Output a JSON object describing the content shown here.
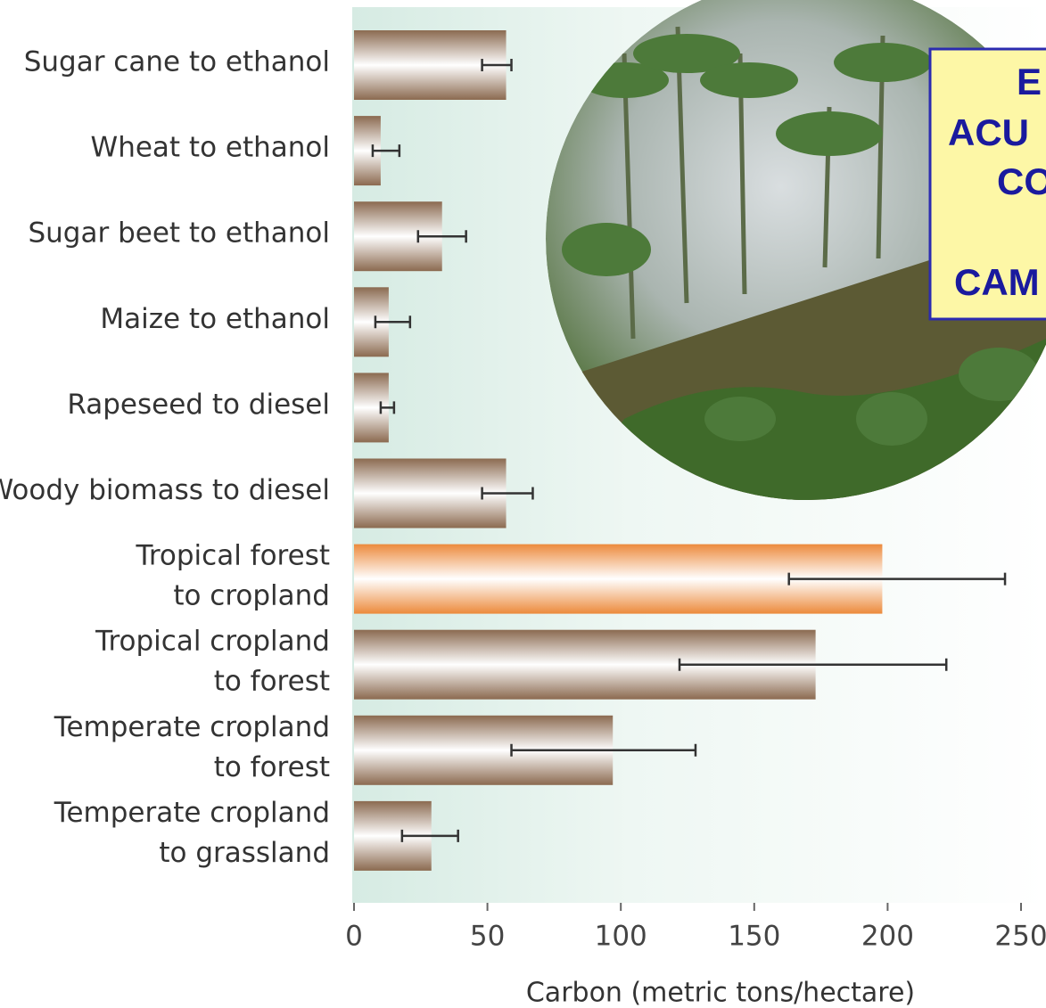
{
  "chart_data": {
    "type": "hbar",
    "categories": [
      [
        "Sugar cane to ethanol"
      ],
      [
        "Wheat to ethanol"
      ],
      [
        "Sugar beet to ethanol"
      ],
      [
        "Maize to ethanol"
      ],
      [
        "Rapeseed to diesel"
      ],
      [
        "Woody biomass to diesel"
      ],
      [
        "Tropical forest",
        "to cropland"
      ],
      [
        "Tropical cropland",
        "to forest"
      ],
      [
        "Temperate cropland",
        "to forest"
      ],
      [
        "Temperate cropland",
        "to grassland"
      ]
    ],
    "values": [
      57,
      10,
      33,
      13,
      13,
      57,
      198,
      173,
      97,
      29
    ],
    "error_low": [
      48,
      7,
      24,
      8,
      10,
      48,
      163,
      122,
      59,
      18
    ],
    "error_high": [
      59,
      17,
      42,
      21,
      15,
      67,
      244,
      222,
      128,
      39
    ],
    "colors": [
      "#8b6a50",
      "#8b6a50",
      "#8b6a50",
      "#8b6a50",
      "#8b6a50",
      "#8b6a50",
      "#ec8a3c",
      "#8b6a50",
      "#8b6a50",
      "#8b6a50"
    ],
    "xlabel": "Carbon (metric tons/hectare)",
    "xlim": [
      0,
      250
    ],
    "xticks": [
      0,
      50,
      100,
      150,
      200,
      250
    ],
    "overlay": {
      "lines": [
        "E",
        "ACU",
        "CO",
        "CAM"
      ]
    }
  }
}
